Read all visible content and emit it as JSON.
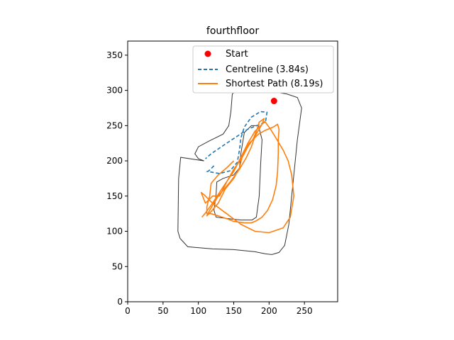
{
  "chart_data": {
    "type": "line",
    "title": "fourthfloor",
    "xlabel": "",
    "ylabel": "",
    "xlim": [
      0,
      297
    ],
    "ylim": [
      0,
      370
    ],
    "xticks": [
      0,
      50,
      100,
      150,
      200,
      250
    ],
    "yticks": [
      0,
      50,
      100,
      150,
      200,
      250,
      300,
      350
    ],
    "grid": false,
    "legend_position": "top-right",
    "legend": [
      {
        "label": "Start",
        "marker": "circle",
        "color": "#ff0000"
      },
      {
        "label": "Centreline (3.84s)",
        "style": "dashed",
        "color": "#1f77b4"
      },
      {
        "label": "Shortest Path (8.19s)",
        "style": "solid",
        "color": "#ff7f0e"
      }
    ],
    "start": {
      "x": 207,
      "y": 285
    },
    "track_outer": [
      [
        108,
        200
      ],
      [
        75,
        205
      ],
      [
        72,
        175
      ],
      [
        71,
        100
      ],
      [
        74,
        90
      ],
      [
        85,
        78
      ],
      [
        120,
        75
      ],
      [
        150,
        74
      ],
      [
        180,
        71
      ],
      [
        195,
        68
      ],
      [
        204,
        67
      ],
      [
        214,
        70
      ],
      [
        222,
        80
      ],
      [
        228,
        110
      ],
      [
        232,
        150
      ],
      [
        236,
        190
      ],
      [
        240,
        230
      ],
      [
        244,
        260
      ],
      [
        246,
        275
      ],
      [
        240,
        290
      ],
      [
        225,
        295
      ],
      [
        195,
        300
      ],
      [
        170,
        302
      ],
      [
        155,
        301
      ],
      [
        148,
        295
      ],
      [
        146,
        270
      ],
      [
        143,
        250
      ],
      [
        135,
        238
      ],
      [
        115,
        228
      ],
      [
        100,
        220
      ],
      [
        95,
        210
      ],
      [
        100,
        203
      ]
    ],
    "track_inner": [
      [
        125,
        152
      ],
      [
        122,
        130
      ],
      [
        125,
        120
      ],
      [
        142,
        118
      ],
      [
        160,
        116
      ],
      [
        176,
        116
      ],
      [
        182,
        120
      ],
      [
        186,
        150
      ],
      [
        188,
        195
      ],
      [
        190,
        230
      ],
      [
        185,
        250
      ],
      [
        175,
        250
      ],
      [
        165,
        240
      ],
      [
        160,
        210
      ],
      [
        158,
        190
      ],
      [
        150,
        180
      ],
      [
        135,
        175
      ],
      [
        126,
        170
      ]
    ],
    "centreline": [
      [
        122,
        193
      ],
      [
        115,
        186
      ],
      [
        113,
        185
      ],
      [
        130,
        182
      ],
      [
        145,
        186
      ],
      [
        155,
        198
      ],
      [
        158,
        215
      ],
      [
        160,
        232
      ],
      [
        165,
        248
      ],
      [
        175,
        262
      ],
      [
        188,
        270
      ],
      [
        197,
        269
      ],
      [
        195,
        255
      ],
      [
        170,
        245
      ],
      [
        140,
        225
      ],
      [
        118,
        210
      ],
      [
        110,
        203
      ]
    ],
    "shortest_path": [
      [
        105,
        120
      ],
      [
        110,
        126
      ],
      [
        120,
        140
      ],
      [
        135,
        163
      ],
      [
        150,
        185
      ],
      [
        160,
        205
      ],
      [
        170,
        225
      ],
      [
        180,
        242
      ],
      [
        190,
        252
      ],
      [
        194,
        256
      ],
      [
        202,
        245
      ],
      [
        210,
        232
      ],
      [
        220,
        215
      ],
      [
        227,
        200
      ],
      [
        232,
        180
      ],
      [
        235,
        150
      ],
      [
        230,
        120
      ],
      [
        220,
        105
      ],
      [
        200,
        98
      ],
      [
        180,
        100
      ],
      [
        160,
        110
      ],
      [
        140,
        125
      ],
      [
        120,
        140
      ],
      [
        108,
        152
      ],
      [
        104,
        155
      ],
      [
        110,
        140
      ],
      [
        120,
        150
      ],
      [
        130,
        150
      ],
      [
        140,
        170
      ],
      [
        150,
        188
      ],
      [
        155,
        195
      ],
      [
        162,
        205
      ],
      [
        170,
        220
      ],
      [
        178,
        232
      ],
      [
        183,
        245
      ],
      [
        186,
        255
      ],
      [
        193,
        260
      ],
      [
        190,
        252
      ],
      [
        180,
        235
      ],
      [
        175,
        220
      ],
      [
        168,
        205
      ],
      [
        158,
        188
      ],
      [
        145,
        170
      ],
      [
        128,
        150
      ],
      [
        116,
        130
      ],
      [
        112,
        122
      ],
      [
        118,
        128
      ],
      [
        128,
        140
      ],
      [
        138,
        160
      ],
      [
        150,
        175
      ],
      [
        158,
        190
      ],
      [
        163,
        210
      ],
      [
        172,
        225
      ],
      [
        185,
        238
      ],
      [
        194,
        243
      ],
      [
        206,
        248
      ],
      [
        212,
        252
      ],
      [
        214,
        245
      ],
      [
        213,
        230
      ],
      [
        213,
        210
      ],
      [
        212,
        185
      ],
      [
        210,
        165
      ],
      [
        205,
        145
      ],
      [
        198,
        130
      ],
      [
        190,
        120
      ],
      [
        182,
        115
      ],
      [
        175,
        112
      ],
      [
        165,
        112
      ],
      [
        150,
        114
      ],
      [
        140,
        118
      ],
      [
        128,
        122
      ],
      [
        118,
        125
      ],
      [
        112,
        125
      ],
      [
        112,
        135
      ],
      [
        116,
        150
      ],
      [
        118,
        168
      ],
      [
        128,
        180
      ],
      [
        140,
        190
      ],
      [
        150,
        200
      ]
    ]
  }
}
